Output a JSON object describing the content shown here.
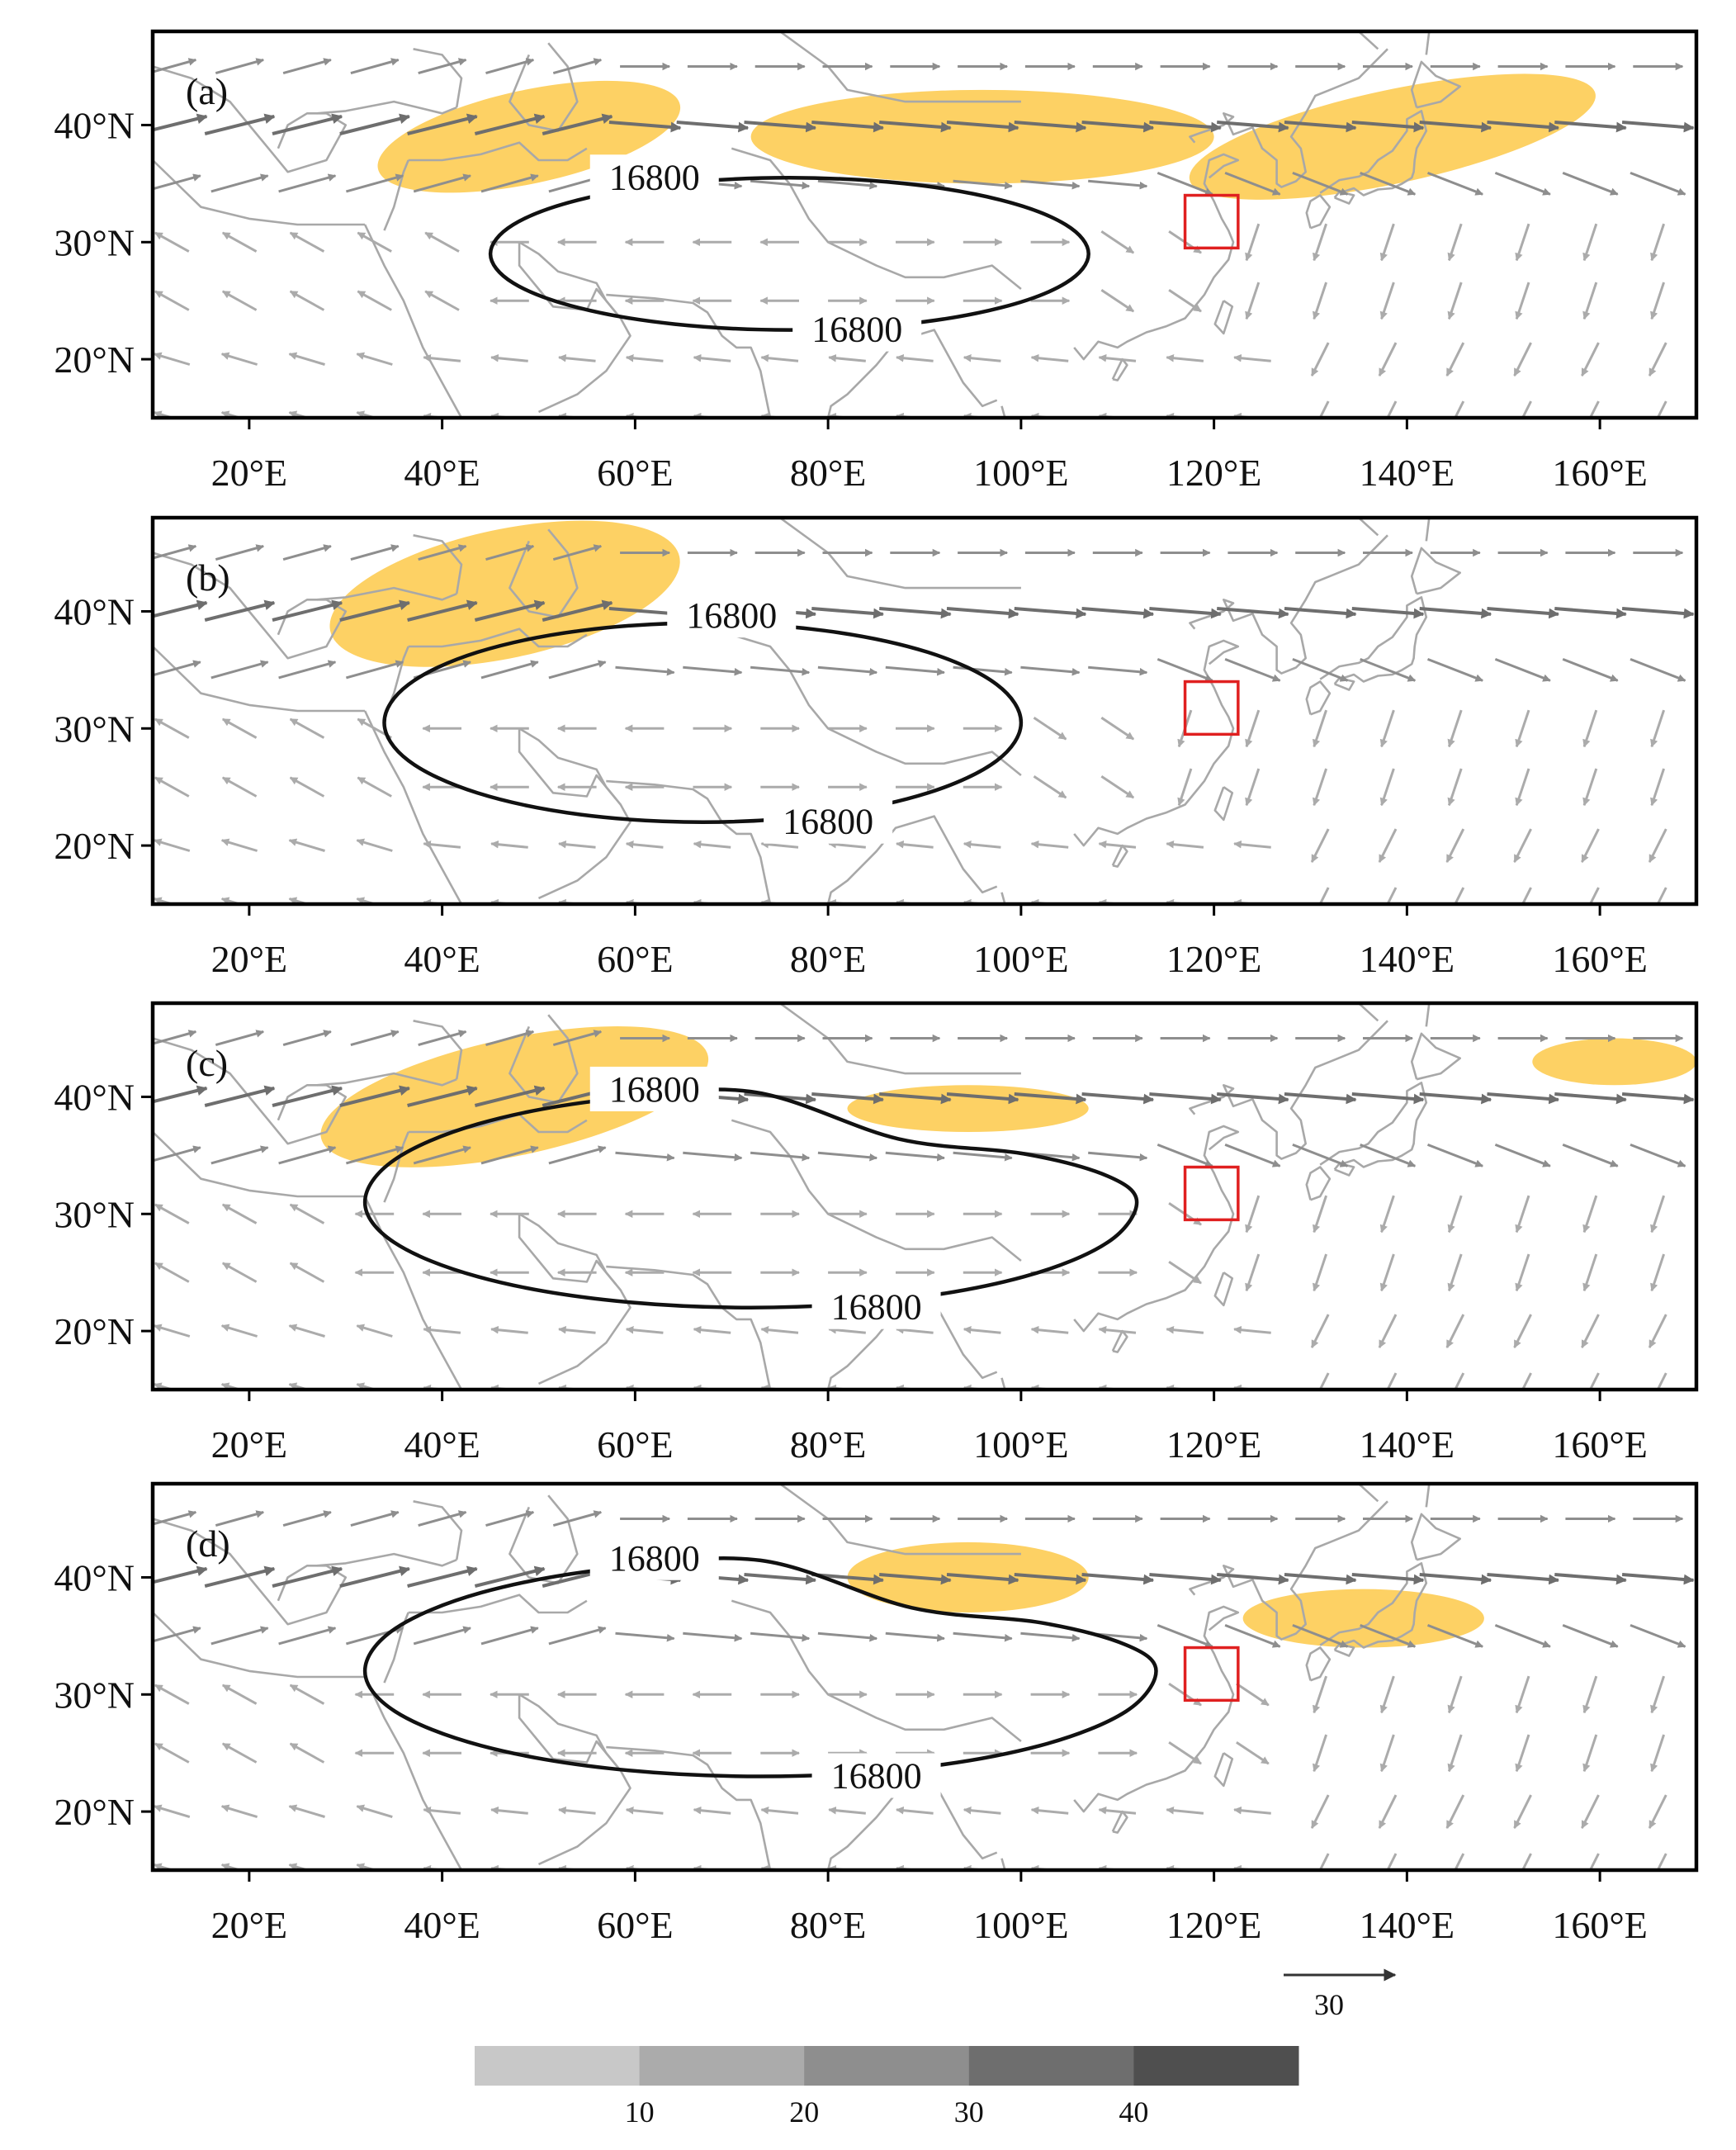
{
  "figure": {
    "x_ticks": [
      "20°E",
      "40°E",
      "60°E",
      "80°E",
      "100°E",
      "120°E",
      "140°E",
      "160°E"
    ],
    "y_ticks": [
      "40°N",
      "30°N",
      "20°N"
    ],
    "contour_label": "16800",
    "reference_vector_label": "30",
    "colorbar_labels": [
      "10",
      "20",
      "30",
      "40"
    ],
    "colors": {
      "jet_fill": "#FDD164",
      "coast": "#A8A8A8",
      "contour": "#111111",
      "highlight_box": "#E02020",
      "colorbar": [
        "#C8C8C8",
        "#ABABAB",
        "#8E8E8E",
        "#6E6E6E",
        "#4F4F4F"
      ]
    }
  },
  "chart_data": {
    "type": "map",
    "x_domain_lon": [
      10,
      170
    ],
    "y_domain_lat": [
      15,
      48
    ],
    "panels": [
      {
        "label": "(a)",
        "contour": {
          "value": "16800",
          "west_lon": 45,
          "east_lon": 107,
          "north_lat": 35.5,
          "south_lat": 22.5
        },
        "jet_regions": [
          {
            "lon": [
              33,
              65
            ],
            "lat": [
              35,
              43
            ]
          },
          {
            "lon": [
              72,
              120
            ],
            "lat": [
              35,
              43
            ]
          },
          {
            "lon": [
              117,
              160
            ],
            "lat": [
              35,
              43
            ]
          }
        ],
        "box": {
          "lon": [
            117,
            122.5
          ],
          "lat": [
            29.5,
            34
          ]
        }
      },
      {
        "label": "(b)",
        "contour": {
          "value": "16800",
          "west_lon": 34,
          "east_lon": 100,
          "north_lat": 39,
          "south_lat": 22
        },
        "jet_regions": [
          {
            "lon": [
              28,
              65
            ],
            "lat": [
              36,
              47
            ]
          }
        ],
        "box": {
          "lon": [
            117,
            122.5
          ],
          "lat": [
            29.5,
            34
          ]
        }
      },
      {
        "label": "(c)",
        "contour": {
          "value": "16800",
          "west_lon": 32,
          "east_lon": 112,
          "north_lat": 40,
          "south_lat": 22
        },
        "jet_regions": [
          {
            "lon": [
              27,
              68
            ],
            "lat": [
              35,
              45
            ]
          },
          {
            "lon": [
              82,
              107
            ],
            "lat": [
              37,
              41
            ]
          },
          {
            "lon": [
              153,
              170
            ],
            "lat": [
              41,
              45
            ]
          }
        ],
        "box": {
          "lon": [
            117,
            122.5
          ],
          "lat": [
            29.5,
            34
          ]
        }
      },
      {
        "label": "(d)",
        "contour": {
          "value": "16800",
          "west_lon": 32,
          "east_lon": 114,
          "north_lat": 41,
          "south_lat": 23
        },
        "jet_regions": [
          {
            "lon": [
              82,
              107
            ],
            "lat": [
              37,
              43
            ]
          },
          {
            "lon": [
              123,
              148
            ],
            "lat": [
              34,
              39
            ]
          }
        ],
        "box": {
          "lon": [
            117,
            122.5
          ],
          "lat": [
            29.5,
            34
          ]
        }
      }
    ]
  }
}
